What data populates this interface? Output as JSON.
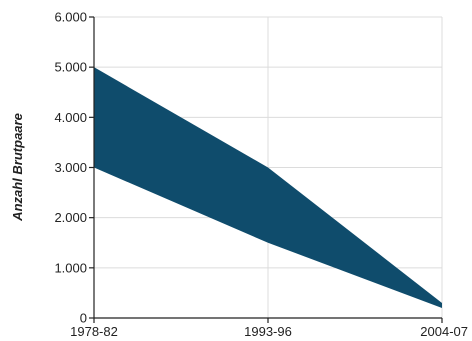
{
  "chart_data": {
    "type": "area",
    "title": "",
    "xlabel": "",
    "ylabel": "Anzahl Brutpaare",
    "categories": [
      "1978-82",
      "1993-96",
      "2004-07"
    ],
    "series": [
      {
        "role": "lower",
        "values": [
          3000,
          1500,
          200
        ]
      },
      {
        "role": "upper",
        "values": [
          5000,
          3000,
          300
        ]
      }
    ],
    "ylim": [
      0,
      6000
    ],
    "yticks": [
      0,
      1000,
      2000,
      3000,
      4000,
      5000,
      6000
    ],
    "ytick_labels": [
      "0",
      "1.000",
      "2.000",
      "3.000",
      "4.000",
      "5.000",
      "6.000"
    ],
    "grid": true,
    "colors": {
      "band": "#0f4c6c",
      "grid": "#dcdcdc",
      "axis": "#222222"
    }
  }
}
